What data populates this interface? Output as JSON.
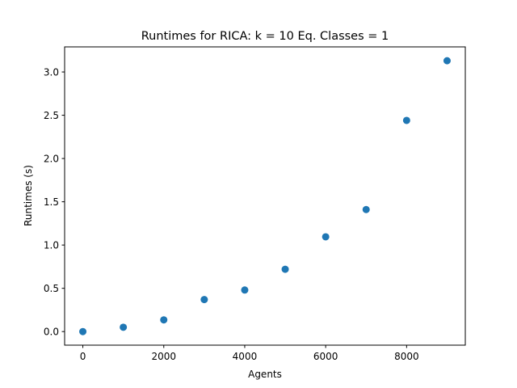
{
  "chart_data": {
    "type": "scatter",
    "title": "Runtimes for RICA: k = 10 Eq. Classes = 1",
    "xlabel": "Agents",
    "ylabel": "Runtimes (s)",
    "xlim": [
      -450,
      9450
    ],
    "ylim": [
      -0.157,
      3.29
    ],
    "xticks": [
      0,
      2000,
      4000,
      6000,
      8000
    ],
    "yticks": [
      0.0,
      0.5,
      1.0,
      1.5,
      2.0,
      2.5,
      3.0
    ],
    "xtick_labels": [
      "0",
      "2000",
      "4000",
      "6000",
      "8000"
    ],
    "ytick_labels": [
      "0.0",
      "0.5",
      "1.0",
      "1.5",
      "2.0",
      "2.5",
      "3.0"
    ],
    "grid": false,
    "marker_color": "#1f77b4",
    "points": [
      {
        "x": 0,
        "y": 0.0
      },
      {
        "x": 1000,
        "y": 0.05
      },
      {
        "x": 2000,
        "y": 0.135
      },
      {
        "x": 3000,
        "y": 0.37
      },
      {
        "x": 4000,
        "y": 0.48
      },
      {
        "x": 5000,
        "y": 0.72
      },
      {
        "x": 6000,
        "y": 1.095
      },
      {
        "x": 7000,
        "y": 1.41
      },
      {
        "x": 8000,
        "y": 2.44
      },
      {
        "x": 9000,
        "y": 3.13
      }
    ]
  }
}
